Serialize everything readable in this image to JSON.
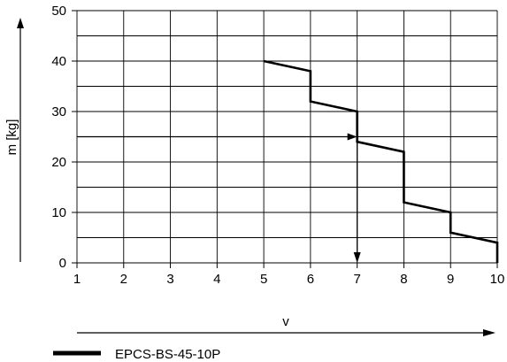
{
  "chart_data": {
    "type": "line",
    "xlabel": "v",
    "ylabel": "m [kg]",
    "xlim": [
      1,
      10
    ],
    "ylim": [
      0,
      50
    ],
    "x_ticks": [
      "1",
      "2",
      "3",
      "4",
      "5",
      "6",
      "7",
      "8",
      "9",
      "10"
    ],
    "y_ticks": [
      "0",
      "10",
      "20",
      "30",
      "40",
      "50"
    ],
    "grid": true,
    "series": [
      {
        "name": "EPCS-BS-45-10P",
        "points": [
          [
            5,
            40
          ],
          [
            6,
            38
          ],
          [
            6,
            32
          ],
          [
            7,
            30
          ],
          [
            7,
            24
          ],
          [
            8,
            22
          ],
          [
            8,
            12
          ],
          [
            9,
            10
          ],
          [
            9,
            6
          ],
          [
            10,
            4
          ],
          [
            10,
            0
          ]
        ]
      }
    ],
    "example_reading": {
      "load": 25,
      "v": 7
    },
    "legend_position": "bottom-left"
  }
}
